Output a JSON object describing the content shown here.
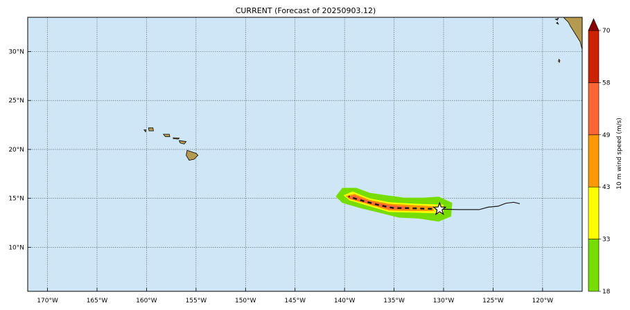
{
  "title": "CURRENT (Forecast of 20250903.12)",
  "colors": {
    "ocean": "#cfe6f6",
    "grid": "#4a5a66",
    "land": "#b59a52",
    "track_observed": "#1a1a1a",
    "track_forecast": "#1a1a1a"
  },
  "map": {
    "lon_range": [
      -172,
      -116
    ],
    "lat_range": [
      5.5,
      33.5
    ],
    "lon_ticks": [
      {
        "value": -170,
        "label": "170°W"
      },
      {
        "value": -165,
        "label": "165°W"
      },
      {
        "value": -160,
        "label": "160°W"
      },
      {
        "value": -155,
        "label": "155°W"
      },
      {
        "value": -150,
        "label": "150°W"
      },
      {
        "value": -145,
        "label": "145°W"
      },
      {
        "value": -140,
        "label": "140°W"
      },
      {
        "value": -135,
        "label": "135°W"
      },
      {
        "value": -130,
        "label": "130°W"
      },
      {
        "value": -125,
        "label": "125°W"
      },
      {
        "value": -120,
        "label": "120°W"
      }
    ],
    "lat_ticks": [
      {
        "value": 10,
        "label": "10°N"
      },
      {
        "value": 15,
        "label": "15°N"
      },
      {
        "value": 20,
        "label": "20°N"
      },
      {
        "value": 25,
        "label": "25°N"
      },
      {
        "value": 30,
        "label": "30°N"
      }
    ],
    "grid": true,
    "current_position": {
      "lon": -130.4,
      "lat": 13.9,
      "icon": "star-icon"
    },
    "observed_track": [
      [
        -130.4,
        13.9
      ],
      [
        -128.5,
        13.85
      ],
      [
        -126.4,
        13.85
      ],
      [
        -125.5,
        14.1
      ],
      [
        -124.5,
        14.2
      ],
      [
        -123.7,
        14.5
      ],
      [
        -122.9,
        14.6
      ],
      [
        -122.3,
        14.45
      ]
    ],
    "forecast_track": [
      [
        -130.4,
        13.9
      ],
      [
        -132.0,
        13.95
      ],
      [
        -133.5,
        14.0
      ],
      [
        -135.0,
        14.0
      ],
      [
        -136.5,
        14.3
      ],
      [
        -138.0,
        14.7
      ],
      [
        -139.0,
        15.0
      ],
      [
        -139.6,
        15.2
      ]
    ],
    "wind_swath_outer": [
      [
        -140.8,
        15.2
      ],
      [
        -140.2,
        16.0
      ],
      [
        -138.8,
        16.0
      ],
      [
        -137.5,
        15.5
      ],
      [
        -135.5,
        15.2
      ],
      [
        -134.0,
        15.0
      ],
      [
        -132.0,
        15.0
      ],
      [
        -130.5,
        15.1
      ],
      [
        -129.2,
        14.5
      ],
      [
        -129.3,
        13.2
      ],
      [
        -130.5,
        12.7
      ],
      [
        -132.5,
        13.0
      ],
      [
        -134.5,
        13.1
      ],
      [
        -136.5,
        13.6
      ],
      [
        -138.5,
        14.1
      ],
      [
        -140.2,
        14.6
      ]
    ],
    "wind_swath_yellow": [
      [
        -140.1,
        15.3
      ],
      [
        -139.2,
        15.7
      ],
      [
        -137.5,
        15.0
      ],
      [
        -135.5,
        14.6
      ],
      [
        -133.0,
        14.45
      ],
      [
        -131.5,
        14.4
      ],
      [
        -130.0,
        14.35
      ],
      [
        -130.0,
        13.45
      ],
      [
        -131.5,
        13.5
      ],
      [
        -133.5,
        13.55
      ],
      [
        -135.5,
        13.6
      ],
      [
        -137.5,
        14.2
      ],
      [
        -139.5,
        14.8
      ]
    ],
    "wind_swath_orange": [
      [
        -139.9,
        15.25
      ],
      [
        -139.0,
        15.45
      ],
      [
        -137.5,
        14.85
      ],
      [
        -135.5,
        14.45
      ],
      [
        -133.0,
        14.3
      ],
      [
        -131.0,
        14.2
      ],
      [
        -131.0,
        13.7
      ],
      [
        -133.0,
        13.7
      ],
      [
        -135.5,
        13.75
      ],
      [
        -137.5,
        14.35
      ],
      [
        -139.5,
        14.95
      ]
    ],
    "wind_swath_red": [
      [
        -139.7,
        15.15
      ],
      [
        -139.0,
        15.3
      ],
      [
        -137.5,
        14.72
      ],
      [
        -135.5,
        14.32
      ],
      [
        -133.5,
        14.15
      ],
      [
        -133.5,
        13.85
      ],
      [
        -135.5,
        13.9
      ],
      [
        -137.5,
        14.45
      ],
      [
        -139.5,
        14.95
      ]
    ],
    "islands": [
      {
        "name": "hawaii",
        "points": [
          [
            -155.9,
            19.9
          ],
          [
            -155.0,
            19.6
          ],
          [
            -154.8,
            19.4
          ],
          [
            -155.2,
            19.0
          ],
          [
            -155.7,
            18.9
          ],
          [
            -156.0,
            19.4
          ]
        ]
      },
      {
        "name": "maui",
        "points": [
          [
            -156.7,
            20.9
          ],
          [
            -156.0,
            20.8
          ],
          [
            -156.2,
            20.55
          ],
          [
            -156.6,
            20.65
          ]
        ]
      },
      {
        "name": "molokai",
        "points": [
          [
            -157.3,
            21.2
          ],
          [
            -156.7,
            21.15
          ],
          [
            -156.8,
            21.05
          ],
          [
            -157.3,
            21.1
          ]
        ]
      },
      {
        "name": "oahu",
        "points": [
          [
            -158.3,
            21.55
          ],
          [
            -157.7,
            21.55
          ],
          [
            -157.65,
            21.3
          ],
          [
            -158.1,
            21.3
          ]
        ]
      },
      {
        "name": "kauai",
        "points": [
          [
            -159.8,
            22.2
          ],
          [
            -159.35,
            22.2
          ],
          [
            -159.3,
            21.9
          ],
          [
            -159.75,
            21.9
          ]
        ]
      },
      {
        "name": "niihau",
        "points": [
          [
            -160.25,
            22.0
          ],
          [
            -160.05,
            22.0
          ],
          [
            -160.1,
            21.8
          ]
        ]
      },
      {
        "name": "guadalupe",
        "points": [
          [
            -118.35,
            29.2
          ],
          [
            -118.25,
            29.1
          ],
          [
            -118.3,
            28.9
          ],
          [
            -118.4,
            29.0
          ]
        ]
      },
      {
        "name": "baja",
        "points": [
          [
            -116,
            33.5
          ],
          [
            -116,
            30.2
          ],
          [
            -116.2,
            31.0
          ],
          [
            -116.7,
            31.8
          ],
          [
            -117.2,
            32.6
          ],
          [
            -117.4,
            33.0
          ],
          [
            -117.9,
            33.5
          ]
        ]
      },
      {
        "name": "channel-island-1",
        "points": [
          [
            -118.7,
            33.3
          ],
          [
            -118.5,
            33.2
          ],
          [
            -118.4,
            33.4
          ]
        ]
      },
      {
        "name": "channel-island-2",
        "points": [
          [
            -118.6,
            32.9
          ],
          [
            -118.4,
            32.8
          ],
          [
            -118.5,
            33.0
          ]
        ]
      }
    ]
  },
  "colorbar": {
    "label": "10 m wind speed (m/s)",
    "bins": [
      {
        "label": "18",
        "color": "#77dd00"
      },
      {
        "label": "33",
        "color": "#ffff00"
      },
      {
        "label": "43",
        "color": "#ff9900"
      },
      {
        "label": "49",
        "color": "#ff6633"
      },
      {
        "label": "58",
        "color": "#cc2200"
      },
      {
        "label": "70",
        "color": "#880000"
      }
    ]
  }
}
